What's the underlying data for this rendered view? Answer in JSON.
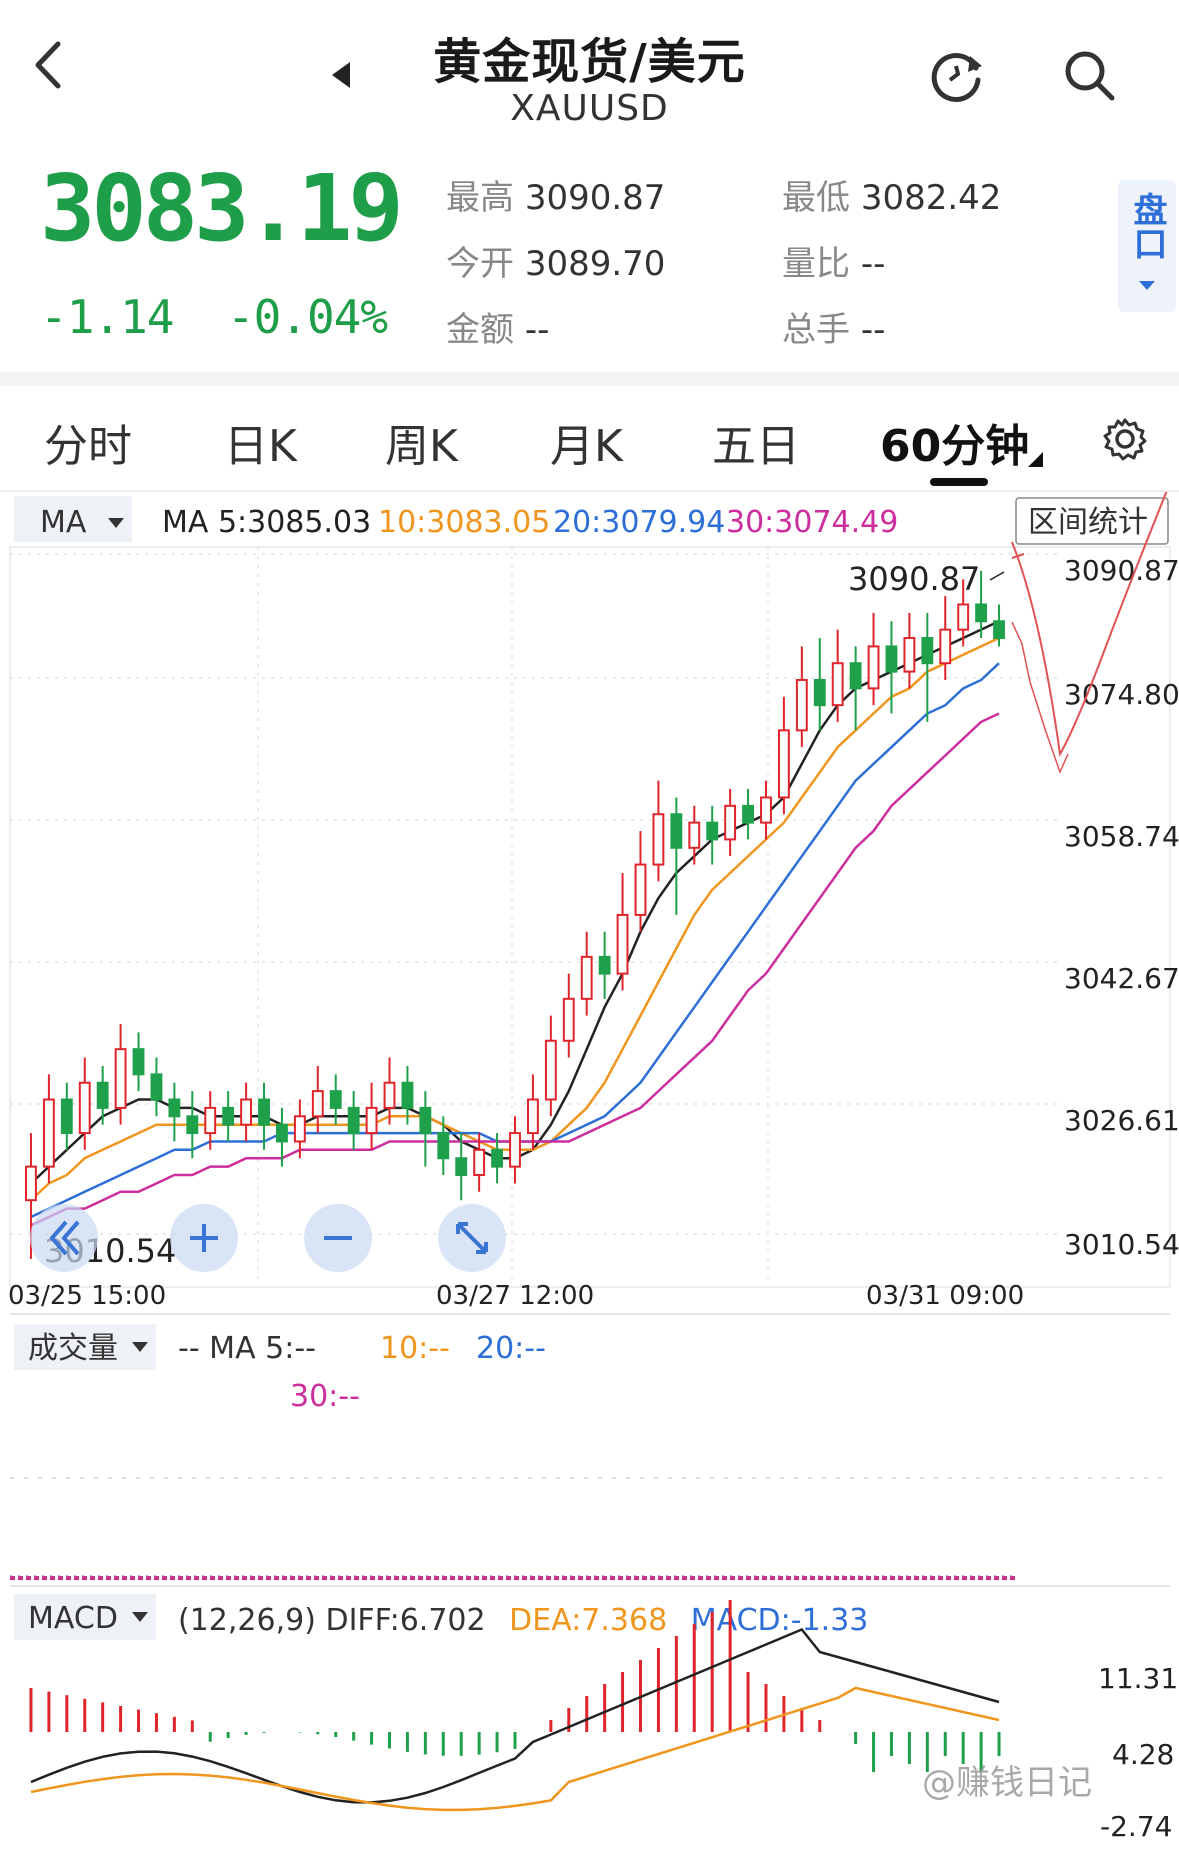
{
  "header": {
    "title": "黄金现货/美元",
    "symbol": "XAUUSD",
    "icons": [
      "back-arrow-icon",
      "prev-triangle-icon",
      "refresh-icon",
      "search-icon"
    ]
  },
  "quote": {
    "price": "3083.19",
    "change": "-1.14",
    "change_pct": "-0.04%",
    "color_down": "#1f9e4a",
    "stats": [
      {
        "label": "最高",
        "value": "3090.87"
      },
      {
        "label": "最低",
        "value": "3082.42"
      },
      {
        "label": "今开",
        "value": "3089.70"
      },
      {
        "label": "量比",
        "value": "--"
      },
      {
        "label": "金额",
        "value": "--"
      },
      {
        "label": "总手",
        "value": "--"
      }
    ],
    "pankou_label": "盘口"
  },
  "tabs": [
    "分时",
    "日K",
    "周K",
    "月K",
    "五日",
    "60分钟"
  ],
  "active_tab": "60分钟",
  "main_chart": {
    "indicator_selector": "MA",
    "ma_legend": {
      "ma5": "MA 5:3085.03",
      "ma10": "10:3083.05",
      "ma20": "20:3079.94",
      "ma30": "30:3074.49"
    },
    "range_stats_button": "区间统计",
    "y_axis_labels": [
      "3090.87",
      "3074.80",
      "3058.74",
      "3042.67",
      "3026.61",
      "3010.54"
    ],
    "x_axis_labels": [
      "03/25  15:00",
      "03/27  12:00",
      "03/31  09:00"
    ],
    "high_marker": "3090.87",
    "low_marker": "3010.54",
    "colors": {
      "up": "#e0242b",
      "down": "#1fa04a",
      "ma5": "#222222",
      "ma10": "#f0961e",
      "ma20": "#2d6fd6",
      "ma30": "#cc2e9e"
    }
  },
  "volume_panel": {
    "selector": "成交量",
    "legend_line1": "--  MA 5:--",
    "legend_ma10": "10:--",
    "legend_ma20": "20:--",
    "legend_ma30": "30:--"
  },
  "macd_panel": {
    "selector": "MACD",
    "params": "(12,26,9)",
    "diff": "DIFF:6.702",
    "dea": "DEA:7.368",
    "macd": "MACD:-1.33",
    "y_axis_labels": [
      "11.31",
      "4.28",
      "-2.74"
    ]
  },
  "watermark": "@赚钱日记",
  "chart_data": {
    "type": "candlestick",
    "ylim": [
      3010.54,
      3090.87
    ],
    "x_labels": [
      "03/25  15:00",
      "03/27  12:00",
      "03/31  09:00"
    ],
    "candles": [
      [
        3016,
        3020,
        3009,
        3024
      ],
      [
        3020,
        3028,
        3018,
        3031
      ],
      [
        3028,
        3024,
        3022,
        3030
      ],
      [
        3024,
        3030,
        3022,
        3033
      ],
      [
        3030,
        3027,
        3025,
        3032
      ],
      [
        3027,
        3034,
        3025,
        3037
      ],
      [
        3034,
        3031,
        3029,
        3036
      ],
      [
        3031,
        3028,
        3026,
        3033
      ],
      [
        3028,
        3026,
        3023,
        3030
      ],
      [
        3026,
        3024,
        3021,
        3029
      ],
      [
        3024,
        3027,
        3022,
        3029
      ],
      [
        3027,
        3025,
        3023,
        3029
      ],
      [
        3025,
        3028,
        3023,
        3030
      ],
      [
        3028,
        3025,
        3022,
        3030
      ],
      [
        3025,
        3023,
        3020,
        3027
      ],
      [
        3023,
        3026,
        3021,
        3028
      ],
      [
        3026,
        3029,
        3024,
        3032
      ],
      [
        3029,
        3027,
        3025,
        3031
      ],
      [
        3027,
        3024,
        3022,
        3029
      ],
      [
        3024,
        3027,
        3022,
        3030
      ],
      [
        3027,
        3030,
        3025,
        3033
      ],
      [
        3030,
        3027,
        3025,
        3032
      ],
      [
        3027,
        3024,
        3020,
        3029
      ],
      [
        3024,
        3021,
        3019,
        3026
      ],
      [
        3021,
        3019,
        3016,
        3024
      ],
      [
        3019,
        3022,
        3017,
        3024
      ],
      [
        3022,
        3020,
        3018,
        3024
      ],
      [
        3020,
        3024,
        3018,
        3026
      ],
      [
        3024,
        3028,
        3022,
        3031
      ],
      [
        3028,
        3035,
        3026,
        3038
      ],
      [
        3035,
        3040,
        3033,
        3043
      ],
      [
        3040,
        3045,
        3038,
        3048
      ],
      [
        3045,
        3043,
        3040,
        3048
      ],
      [
        3043,
        3050,
        3041,
        3055
      ],
      [
        3050,
        3056,
        3048,
        3060
      ],
      [
        3056,
        3062,
        3054,
        3066
      ],
      [
        3062,
        3058,
        3050,
        3064
      ],
      [
        3058,
        3061,
        3056,
        3063
      ],
      [
        3061,
        3059,
        3056,
        3063
      ],
      [
        3059,
        3063,
        3057,
        3065
      ],
      [
        3063,
        3061,
        3059,
        3065
      ],
      [
        3061,
        3064,
        3059,
        3066
      ],
      [
        3064,
        3072,
        3062,
        3076
      ],
      [
        3072,
        3078,
        3070,
        3082
      ],
      [
        3078,
        3075,
        3072,
        3083
      ],
      [
        3075,
        3080,
        3073,
        3084
      ],
      [
        3080,
        3077,
        3072,
        3082
      ],
      [
        3077,
        3082,
        3075,
        3086
      ],
      [
        3082,
        3079,
        3074,
        3085
      ],
      [
        3079,
        3083,
        3077,
        3086
      ],
      [
        3083,
        3080,
        3073,
        3086
      ],
      [
        3080,
        3084,
        3078,
        3088
      ],
      [
        3084,
        3087,
        3082,
        3090
      ],
      [
        3087,
        3085,
        3083,
        3091
      ],
      [
        3085,
        3083,
        3082,
        3087
      ]
    ],
    "series": [
      {
        "name": "MA 5",
        "values": [
          3018,
          3020,
          3022,
          3024,
          3026,
          3027,
          3028,
          3028,
          3027,
          3027,
          3026,
          3026,
          3026,
          3026,
          3025,
          3025,
          3026,
          3026,
          3026,
          3026,
          3027,
          3027,
          3026,
          3025,
          3023,
          3022,
          3021,
          3021,
          3022,
          3025,
          3029,
          3034,
          3039,
          3043,
          3048,
          3052,
          3055,
          3057,
          3059,
          3060,
          3061,
          3062,
          3064,
          3068,
          3072,
          3075,
          3077,
          3078,
          3079,
          3080,
          3081,
          3082,
          3083,
          3084,
          3085
        ]
      },
      {
        "name": "10",
        "values": [
          3016,
          3018,
          3019,
          3021,
          3022,
          3023,
          3024,
          3025,
          3025,
          3025,
          3025,
          3025,
          3025,
          3025,
          3025,
          3025,
          3025,
          3025,
          3025,
          3025,
          3026,
          3026,
          3026,
          3025,
          3024,
          3023,
          3022,
          3022,
          3022,
          3023,
          3025,
          3027,
          3030,
          3034,
          3038,
          3042,
          3046,
          3050,
          3053,
          3055,
          3057,
          3059,
          3061,
          3064,
          3067,
          3070,
          3072,
          3074,
          3076,
          3077,
          3079,
          3080,
          3081,
          3082,
          3083
        ]
      },
      {
        "name": "20",
        "values": [
          3014,
          3015,
          3016,
          3017,
          3018,
          3019,
          3020,
          3021,
          3022,
          3022,
          3023,
          3023,
          3023,
          3023,
          3024,
          3024,
          3024,
          3024,
          3024,
          3024,
          3024,
          3024,
          3024,
          3024,
          3024,
          3024,
          3023,
          3023,
          3023,
          3023,
          3024,
          3025,
          3026,
          3028,
          3030,
          3033,
          3036,
          3039,
          3042,
          3045,
          3048,
          3051,
          3054,
          3057,
          3060,
          3063,
          3066,
          3068,
          3070,
          3072,
          3074,
          3075,
          3077,
          3078,
          3080
        ]
      },
      {
        "name": "30",
        "values": [
          3013,
          3014,
          3015,
          3015,
          3016,
          3017,
          3017,
          3018,
          3019,
          3019,
          3020,
          3020,
          3021,
          3021,
          3021,
          3022,
          3022,
          3022,
          3022,
          3022,
          3023,
          3023,
          3023,
          3023,
          3023,
          3023,
          3023,
          3023,
          3023,
          3023,
          3023,
          3024,
          3025,
          3026,
          3027,
          3029,
          3031,
          3033,
          3035,
          3038,
          3041,
          3043,
          3046,
          3049,
          3052,
          3055,
          3058,
          3060,
          3063,
          3065,
          3067,
          3069,
          3071,
          3073,
          3074
        ]
      }
    ],
    "macd": {
      "diff_last": 6.702,
      "dea_last": 7.368,
      "macd_last": -1.33,
      "ylim": [
        -2.74,
        11.31
      ]
    }
  }
}
